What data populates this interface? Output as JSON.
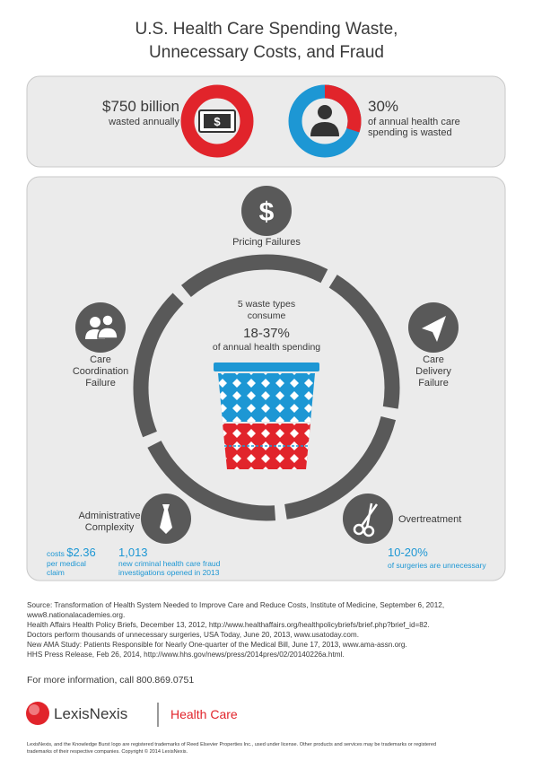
{
  "header": {
    "title_lines": [
      "U.S. Health Care Spending Waste,",
      "Unnecessary Costs, and Fraud"
    ]
  },
  "summary": [
    {
      "value": "$750 billion",
      "caption": [
        "wasted annually"
      ]
    },
    {
      "value": "30%",
      "caption": [
        "of annual health care",
        "spending is wasted"
      ]
    }
  ],
  "center": {
    "lines": [
      "5 waste types",
      "consume"
    ],
    "value": "18-37%",
    "caption": "of annual health spending"
  },
  "categories": [
    {
      "label": [
        "Pricing Failures"
      ]
    },
    {
      "label": [
        "Care",
        "Coordination",
        "Failure"
      ]
    },
    {
      "label": [
        "Care",
        "Delivery",
        "Failure"
      ]
    },
    {
      "label": [
        "Administrative",
        "Complexity"
      ]
    },
    {
      "label": [
        "Overtreatment"
      ]
    }
  ],
  "stats": [
    {
      "prefix": "costs",
      "value": "$2.36",
      "caption": [
        "per medical",
        "claim"
      ]
    },
    {
      "value": "1,013",
      "caption": [
        "new criminal health care fraud",
        "investigations opened in 2013"
      ]
    },
    {
      "value": "10-20%",
      "caption": [
        "of surgeries are unnecessary"
      ]
    }
  ],
  "sources": [
    "Source: Transformation of Health System Needed to Improve Care and Reduce Costs, Institute of Medicine, September 6, 2012,",
    "www8.nationalacademies.org.",
    "Health Affairs Health Policy Briefs, December 13, 2012, http://www.healthaffairs.org/healthpolicybriefs/brief.php?brief_id=82.",
    "Doctors perform thousands of unnecessary surgeries, USA Today, June 20, 2013, www.usatoday.com.",
    "New AMA Study: Patients Responsible for Nearly One-quarter of the Medical Bill, June 17, 2013, www.ama-assn.org.",
    "HHS Press Release, Feb 26, 2014, http://www.hhs.gov/news/press/2014pres/02/20140226a.html."
  ],
  "contact": "For more information, call 800.869.0751",
  "brand": {
    "name": "LexisNexis",
    "division": "Health Care"
  },
  "legal": [
    "LexisNexis, and the Knowledge Burst logo are registered trademarks of Reed Elsevier Properties Inc., used under license. Other products and services may be trademarks or registered",
    "trademarks of their respective companies. Copyright © 2014 LexisNexis."
  ]
}
